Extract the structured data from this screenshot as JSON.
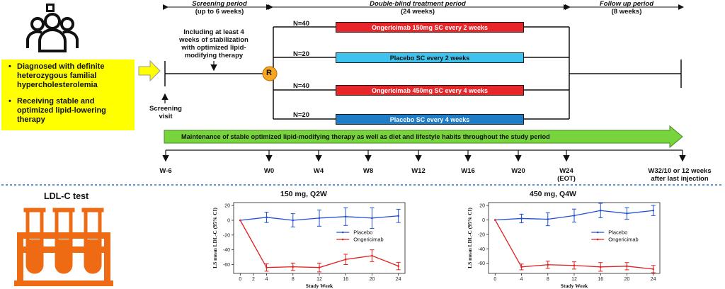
{
  "periods": {
    "screening": [
      "Screening period",
      "(up to 6 weeks)"
    ],
    "treatment": [
      "Double-blind treatment period",
      "(24 weeks)"
    ],
    "followup": [
      "Follow up period",
      "(8 weeks)"
    ]
  },
  "stabilization_note": [
    "Including at least 4",
    "weeks of stabilization",
    "with optimized lipid-",
    "modifying therapy"
  ],
  "screening_visit": [
    "Screening",
    "visit"
  ],
  "randomization_label": "R",
  "inclusion": [
    [
      "Diagnosed with definite",
      "heterozygous familial",
      "hypercholesterolemia"
    ],
    [
      "Receiving stable and",
      "optimized lipid-lowering",
      "therapy"
    ]
  ],
  "bullet_char": "•",
  "arms": [
    {
      "n": "N=40",
      "label": "Ongericimab 150mg SC every 2 weeks",
      "color": "#e8262a"
    },
    {
      "n": "N=20",
      "label": "Placebo SC every 2 weeks",
      "color": "#3ec3ef"
    },
    {
      "n": "N=40",
      "label": "Ongericimab 450mg SC every 4 weeks",
      "color": "#e8262a"
    },
    {
      "n": "N=20",
      "label": "Placebo SC every 4 weeks",
      "color": "#1f7cc7"
    }
  ],
  "maintenance_text": "Maintenance of stable optimized lipid-modifying therapy as well as diet and lifestyle habits throughout the study period",
  "timeline": [
    {
      "label": "W-6"
    },
    {
      "label": "W0"
    },
    {
      "label": "W4"
    },
    {
      "label": "W8"
    },
    {
      "label": "W12"
    },
    {
      "label": "W16"
    },
    {
      "label": "W20"
    },
    {
      "label": "W24",
      "sub": "(EOT)"
    },
    {
      "label": "W32/10 or 12 weeks",
      "sub": "after last injection"
    }
  ],
  "ldl_test_label": "LDL-C test",
  "chart_data": [
    {
      "type": "line",
      "title": "150 mg, Q2W",
      "xlabel": "Study Week",
      "ylabel": "LS mean LDL-C (95% CI)",
      "xticks": [
        0,
        2,
        4,
        8,
        12,
        16,
        20,
        24
      ],
      "yticks": [
        20,
        0,
        -20,
        -40,
        -60
      ],
      "xlim": [
        -1,
        25
      ],
      "ylim": [
        -72,
        24
      ],
      "legend_position": "center-right",
      "series": [
        {
          "name": "Placebo",
          "color": "#1f4fd6",
          "x": [
            0,
            4,
            8,
            12,
            16,
            20,
            24
          ],
          "y": [
            0,
            4,
            0,
            3,
            5,
            3,
            6
          ],
          "err": [
            0,
            7,
            9,
            11,
            12,
            14,
            9
          ]
        },
        {
          "name": "Ongericimab",
          "color": "#e0201e",
          "x": [
            0,
            4,
            8,
            12,
            16,
            20,
            24
          ],
          "y": [
            0,
            -64,
            -63,
            -64,
            -53,
            -48,
            -62
          ],
          "err": [
            0,
            5,
            5,
            6,
            7,
            8,
            5
          ]
        }
      ]
    },
    {
      "type": "line",
      "title": "450 mg, Q4W",
      "xlabel": "Study Week",
      "ylabel": "LS mean LDL-C (95% CI)",
      "xticks": [
        0,
        4,
        8,
        12,
        16,
        20,
        24
      ],
      "yticks": [
        20,
        0,
        -20,
        -40,
        -60
      ],
      "xlim": [
        -1,
        25
      ],
      "ylim": [
        -74,
        24
      ],
      "legend_position": "center-right",
      "series": [
        {
          "name": "Placebo",
          "color": "#1f4fd6",
          "x": [
            0,
            4,
            8,
            12,
            16,
            20,
            24
          ],
          "y": [
            0,
            2,
            1,
            6,
            13,
            9,
            13
          ],
          "err": [
            0,
            6,
            9,
            9,
            10,
            8,
            7
          ]
        },
        {
          "name": "Ongericimab",
          "color": "#e0201e",
          "x": [
            0,
            4,
            8,
            12,
            16,
            20,
            24
          ],
          "y": [
            0,
            -65,
            -62,
            -63,
            -65,
            -64,
            -68
          ],
          "err": [
            0,
            4,
            5,
            5,
            6,
            5,
            5
          ]
        }
      ]
    }
  ]
}
